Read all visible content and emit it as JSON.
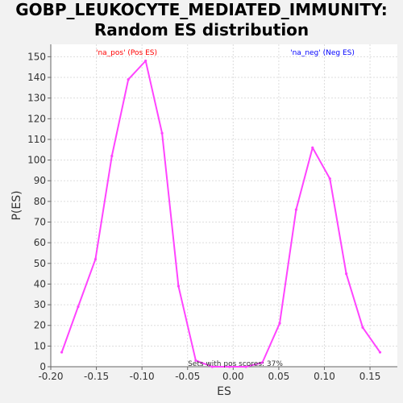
{
  "chart_data": {
    "type": "line",
    "title": "GOBP_LEUKOCYTE_MEDIATED_IMMUNITY: Random ES distribution",
    "title_lines": [
      "GOBP_LEUKOCYTE_MEDIATED_IMMUNITY:",
      "Random ES distribution"
    ],
    "xlabel": "ES",
    "ylabel": "P(ES)",
    "xlim": [
      -0.2,
      0.18
    ],
    "ylim": [
      0,
      156
    ],
    "x_ticks": [
      -0.2,
      -0.15,
      -0.1,
      -0.05,
      0.0,
      0.05,
      0.1,
      0.15
    ],
    "x_tick_labels": [
      "-0.20",
      "-0.15",
      "-0.10",
      "-0.05",
      "0.00",
      "0.05",
      "0.10",
      "0.15"
    ],
    "y_ticks": [
      0,
      10,
      20,
      30,
      40,
      50,
      60,
      70,
      80,
      90,
      100,
      110,
      120,
      130,
      140,
      150
    ],
    "y_tick_labels": [
      "0",
      "10",
      "20",
      "30",
      "40",
      "50",
      "60",
      "70",
      "80",
      "90",
      "100",
      "110",
      "120",
      "130",
      "140",
      "150"
    ],
    "grid": true,
    "series": [
      {
        "color": "#ff44ff",
        "x": [
          -0.188,
          -0.17,
          -0.151,
          -0.133,
          -0.115,
          -0.096,
          -0.078,
          -0.06,
          -0.041,
          -0.023,
          -0.004,
          0.014,
          0.032,
          0.051,
          0.069,
          0.087,
          0.106,
          0.124,
          0.142,
          0.161
        ],
        "y": [
          7,
          29,
          52,
          102,
          139,
          148,
          113,
          39,
          3,
          0,
          0,
          0,
          2,
          21,
          76,
          106,
          91,
          45,
          19,
          7
        ]
      }
    ],
    "annotations": {
      "pos_label": "'na_pos' (Pos ES)",
      "neg_label": "'na_neg' (Neg ES)",
      "footer": "Sets with pos scores: 37%"
    },
    "colors": {
      "line": "#ff44ff",
      "pos_label": "#ff0000",
      "neg_label": "#0000ff",
      "plot_bg": "#ffffff",
      "page_bg": "#f2f2f2"
    }
  }
}
